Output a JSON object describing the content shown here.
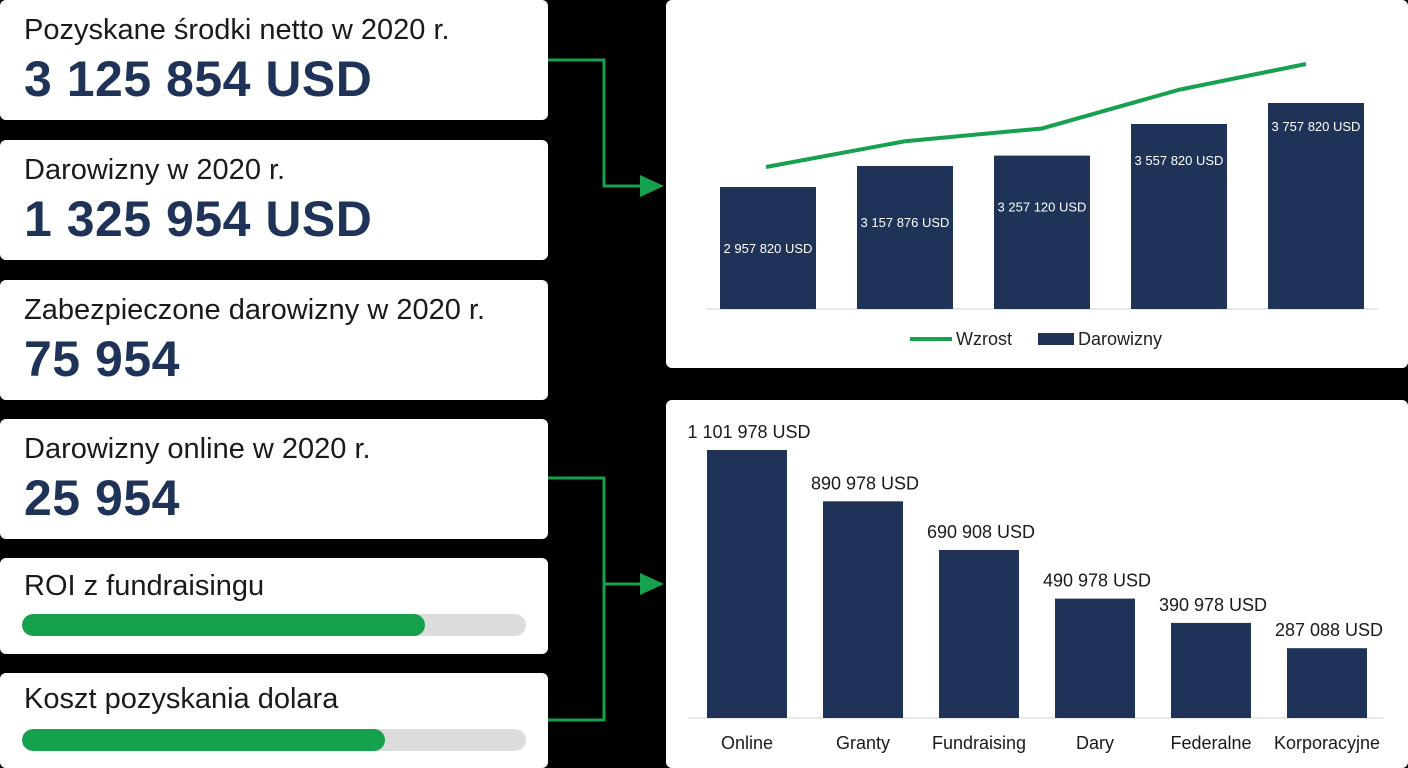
{
  "kpis": [
    {
      "label": "Pozyskane środki netto w 2020 r.",
      "value": "3 125 854 USD"
    },
    {
      "label": "Darowizny w 2020 r.",
      "value": "1 325 954 USD"
    },
    {
      "label": "Zabezpieczone darowizny w 2020 r.",
      "value": "75 954"
    },
    {
      "label": "Darowizny online w 2020 r.",
      "value": "25 954"
    }
  ],
  "progress": [
    {
      "label": "ROI z fundraisingu",
      "fraction": 0.8
    },
    {
      "label": "Koszt pozyskania dolara",
      "fraction": 0.72
    }
  ],
  "colors": {
    "navy": "#1f3358",
    "green": "#16a14e",
    "track": "#dcdcdc"
  },
  "chart_data": [
    {
      "type": "bar",
      "categories": [
        "",
        "",
        "",
        "",
        ""
      ],
      "series": [
        {
          "name": "Darowizny",
          "type": "bar",
          "values": [
            2957820,
            3157876,
            3257120,
            3557820,
            3757820
          ],
          "labels": [
            "2 957 820 USD",
            "3 157 876 USD",
            "3 257 120 USD",
            "3 557 820 USD",
            "3 757 820 USD"
          ]
        },
        {
          "name": "Wzrost",
          "type": "line",
          "values": [
            2957820,
            3157876,
            3257120,
            3557820,
            3757820
          ]
        }
      ],
      "legend": "bottom",
      "grid": false
    },
    {
      "type": "bar",
      "categories": [
        "Online",
        "Granty",
        "Fundraising",
        "Dary",
        "Federalne",
        "Korporacyjne"
      ],
      "values": [
        1101978,
        890978,
        690908,
        490978,
        390978,
        287088
      ],
      "labels": [
        "1 101 978 USD",
        "890 978 USD",
        "690 908 USD",
        "490 978 USD",
        "390 978 USD",
        "287 088 USD"
      ],
      "grid": false
    }
  ]
}
